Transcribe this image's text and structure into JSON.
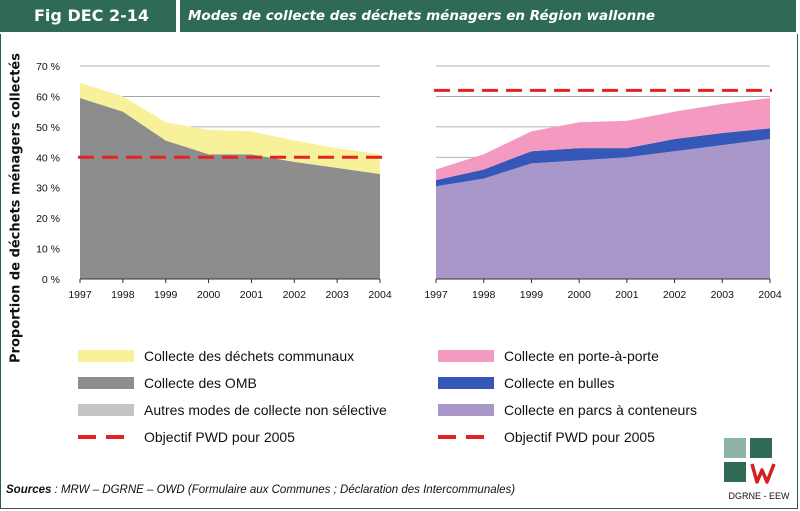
{
  "header": {
    "fig_tag": "Fig DEC 2-14",
    "title": "Modes de collecte des déchets ménagers en Région wallonne"
  },
  "ylabel": "Proportion de déchets ménagers collectés",
  "chart_data": [
    {
      "type": "area",
      "x": [
        "1997",
        "1998",
        "1999",
        "2000",
        "2001",
        "2002",
        "2003",
        "2004"
      ],
      "ylim": [
        0,
        70
      ],
      "yticks": [
        "0 %",
        "10 %",
        "20 %",
        "30 %",
        "40 %",
        "50 %",
        "60 %",
        "70 %"
      ],
      "grid": true,
      "stacked": true,
      "series": [
        {
          "name": "Collecte des OMB",
          "color": "#8d8d8d",
          "values": [
            59.5,
            55,
            45.5,
            41,
            41,
            38.5,
            36.5,
            34.5
          ]
        },
        {
          "name": "Autres modes de collecte non sélective",
          "color": "#c4c4c4",
          "values": [
            0,
            0,
            0,
            0,
            0,
            0,
            0,
            0
          ]
        },
        {
          "name": "Collecte des déchets communaux",
          "color": "#f7f29a",
          "values": [
            5,
            5,
            6,
            8,
            7.5,
            7,
            6.5,
            6.5
          ]
        }
      ],
      "target": {
        "name": "Objectif PWD pour 2005",
        "value": 40,
        "color": "#e32222"
      }
    },
    {
      "type": "area",
      "x": [
        "1997",
        "1998",
        "1999",
        "2000",
        "2001",
        "2002",
        "2003",
        "2004"
      ],
      "ylim": [
        0,
        70
      ],
      "grid": true,
      "stacked": true,
      "series": [
        {
          "name": "Collecte en parcs à conteneurs",
          "color": "#a897c8",
          "values": [
            30.5,
            33,
            38,
            39,
            40,
            42,
            44,
            46
          ]
        },
        {
          "name": "Collecte en bulles",
          "color": "#3557b7",
          "values": [
            2,
            3,
            4,
            4,
            3,
            4,
            4,
            3.5
          ]
        },
        {
          "name": "Collecte en porte-à-porte",
          "color": "#f49ac1",
          "values": [
            3.5,
            5,
            6.5,
            8.5,
            9,
            9,
            9.5,
            10
          ]
        }
      ],
      "target": {
        "name": "Objectif PWD pour 2005",
        "value": 62,
        "color": "#e32222"
      }
    }
  ],
  "legend": {
    "left": [
      {
        "label": "Collecte des déchets communaux",
        "color": "#f7f29a"
      },
      {
        "label": "Collecte des OMB",
        "color": "#8d8d8d"
      },
      {
        "label": "Autres modes de collecte non sélective",
        "color": "#c4c4c4"
      },
      {
        "label": "Objectif PWD pour 2005",
        "color": "#e32222",
        "dash": true
      }
    ],
    "right": [
      {
        "label": "Collecte en porte-à-porte",
        "color": "#f49ac1"
      },
      {
        "label": "Collecte en bulles",
        "color": "#3557b7"
      },
      {
        "label": "Collecte en parcs à conteneurs",
        "color": "#a897c8"
      },
      {
        "label": "Objectif PWD pour 2005",
        "color": "#e32222",
        "dash": true
      }
    ]
  },
  "sources": {
    "label": "Sources",
    "text": " : MRW – DGRNE – OWD (Formulaire aux Communes ; Déclaration des Intercommunales)"
  },
  "logo": {
    "caption": "DGRNE - EEW"
  }
}
